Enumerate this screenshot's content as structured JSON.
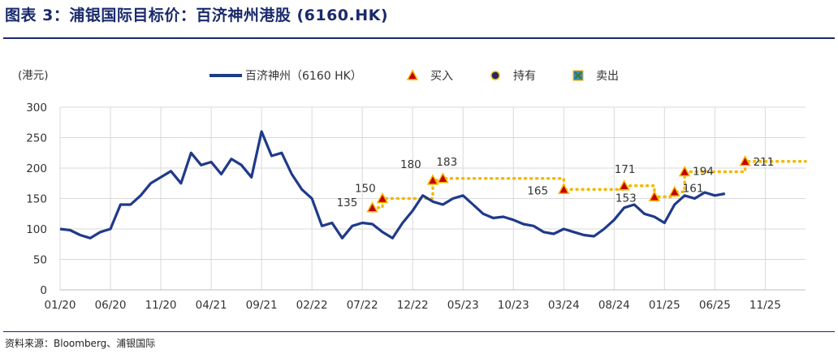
{
  "title": "图表 3：浦银国际目标价：百济神州港股 (6160.HK)",
  "source": "资料来源：Bloomberg、浦银国际",
  "colors": {
    "accent": "#1a2a6c",
    "price": "#1f3a8a",
    "target": "#f4b800",
    "buy": "#c00000",
    "buy_fill": "#ffb300",
    "grid": "#d9d9d9"
  },
  "chart_data": {
    "type": "line",
    "ylabel": "(港元)",
    "ylim": [
      0,
      300
    ],
    "yticks": [
      0,
      50,
      100,
      150,
      200,
      250,
      300
    ],
    "x_range": [
      "2020-01",
      "2026-03"
    ],
    "xticks": [
      "01/20",
      "06/20",
      "11/20",
      "04/21",
      "09/21",
      "02/22",
      "07/22",
      "12/22",
      "05/23",
      "10/23",
      "03/24",
      "08/24",
      "01/25",
      "06/25",
      "11/25"
    ],
    "legend": [
      {
        "name": "百济神州（6160 HK）",
        "icon": "line"
      },
      {
        "name": "买入",
        "icon": "triangle"
      },
      {
        "name": "持有",
        "icon": "circle"
      },
      {
        "name": "卖出",
        "icon": "x-square"
      }
    ],
    "series": [
      {
        "name": "百济神州（6160 HK）",
        "points": [
          [
            "2020-01",
            100
          ],
          [
            "2020-02",
            98
          ],
          [
            "2020-03",
            90
          ],
          [
            "2020-04",
            85
          ],
          [
            "2020-05",
            95
          ],
          [
            "2020-06",
            100
          ],
          [
            "2020-07",
            140
          ],
          [
            "2020-08",
            140
          ],
          [
            "2020-09",
            155
          ],
          [
            "2020-10",
            175
          ],
          [
            "2020-11",
            185
          ],
          [
            "2020-12",
            195
          ],
          [
            "2021-01",
            175
          ],
          [
            "2021-02",
            225
          ],
          [
            "2021-03",
            205
          ],
          [
            "2021-04",
            210
          ],
          [
            "2021-05",
            190
          ],
          [
            "2021-06",
            215
          ],
          [
            "2021-07",
            205
          ],
          [
            "2021-08",
            185
          ],
          [
            "2021-09",
            260
          ],
          [
            "2021-10",
            220
          ],
          [
            "2021-11",
            225
          ],
          [
            "2021-12",
            190
          ],
          [
            "2022-01",
            165
          ],
          [
            "2022-02",
            150
          ],
          [
            "2022-03",
            105
          ],
          [
            "2022-04",
            110
          ],
          [
            "2022-05",
            85
          ],
          [
            "2022-06",
            105
          ],
          [
            "2022-07",
            110
          ],
          [
            "2022-08",
            108
          ],
          [
            "2022-09",
            95
          ],
          [
            "2022-10",
            85
          ],
          [
            "2022-11",
            110
          ],
          [
            "2022-12",
            130
          ],
          [
            "2023-01",
            155
          ],
          [
            "2023-02",
            145
          ],
          [
            "2023-03",
            140
          ],
          [
            "2023-04",
            150
          ],
          [
            "2023-05",
            155
          ],
          [
            "2023-06",
            140
          ],
          [
            "2023-07",
            125
          ],
          [
            "2023-08",
            118
          ],
          [
            "2023-09",
            120
          ],
          [
            "2023-10",
            115
          ],
          [
            "2023-11",
            108
          ],
          [
            "2023-12",
            105
          ],
          [
            "2024-01",
            95
          ],
          [
            "2024-02",
            92
          ],
          [
            "2024-03",
            100
          ],
          [
            "2024-04",
            95
          ],
          [
            "2024-05",
            90
          ],
          [
            "2024-06",
            88
          ],
          [
            "2024-07",
            100
          ],
          [
            "2024-08",
            115
          ],
          [
            "2024-09",
            135
          ],
          [
            "2024-10",
            140
          ],
          [
            "2024-11",
            125
          ],
          [
            "2024-12",
            120
          ],
          [
            "2025-01",
            110
          ],
          [
            "2025-02",
            140
          ],
          [
            "2025-03",
            155
          ],
          [
            "2025-04",
            150
          ],
          [
            "2025-05",
            160
          ],
          [
            "2025-06",
            155
          ],
          [
            "2025-07",
            158
          ]
        ]
      }
    ],
    "target_price": {
      "type": "step",
      "points": [
        [
          "2022-08",
          135
        ],
        [
          "2022-09",
          150
        ],
        [
          "2023-02",
          180
        ],
        [
          "2023-03",
          183
        ],
        [
          "2024-03",
          165
        ],
        [
          "2024-09",
          171
        ],
        [
          "2024-12",
          153
        ],
        [
          "2025-02",
          161
        ],
        [
          "2025-03",
          194
        ],
        [
          "2025-09",
          211
        ],
        [
          "2026-03",
          211
        ]
      ]
    },
    "buy_markers": [
      {
        "date": "2022-08",
        "value": 135,
        "label": "135"
      },
      {
        "date": "2022-09",
        "value": 150,
        "label": "150"
      },
      {
        "date": "2023-02",
        "value": 180,
        "label": "180"
      },
      {
        "date": "2023-03",
        "value": 183,
        "label": "183"
      },
      {
        "date": "2024-03",
        "value": 165,
        "label": "165"
      },
      {
        "date": "2024-09",
        "value": 171,
        "label": "171"
      },
      {
        "date": "2024-12",
        "value": 153,
        "label": "153"
      },
      {
        "date": "2025-02",
        "value": 161,
        "label": "161"
      },
      {
        "date": "2025-03",
        "value": 194,
        "label": "194"
      },
      {
        "date": "2025-09",
        "value": 211,
        "label": "211"
      }
    ]
  }
}
